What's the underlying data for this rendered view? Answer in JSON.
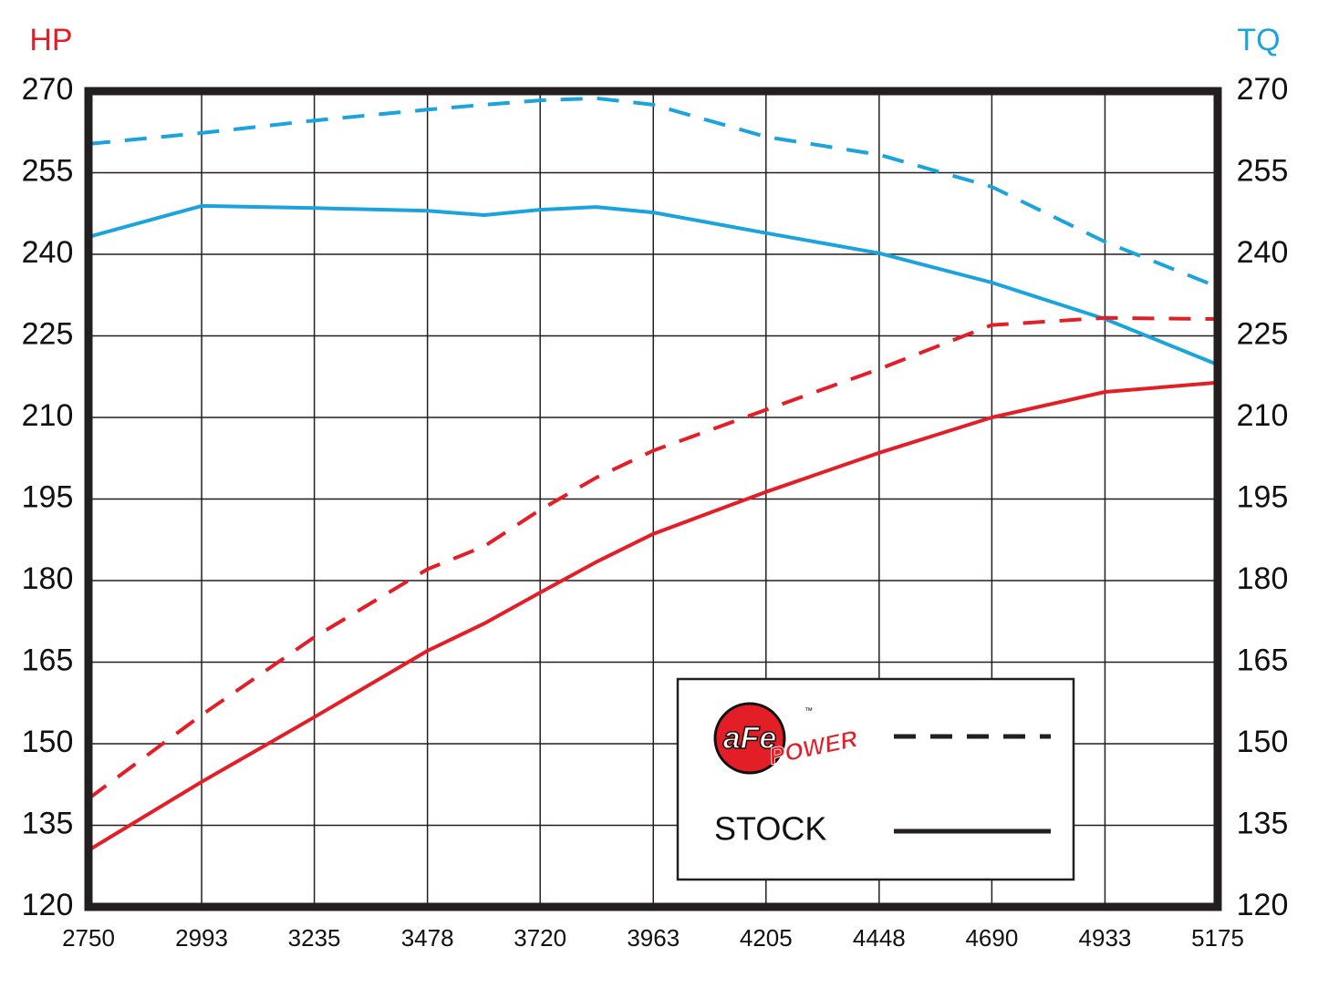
{
  "chart_data": {
    "type": "line",
    "y_label": "HP",
    "y2_label": "TQ",
    "x": [
      2750,
      2993,
      3235,
      3478,
      3600,
      3720,
      3840,
      3963,
      4205,
      4448,
      4690,
      4933,
      5175
    ],
    "xlim": [
      2750,
      5175
    ],
    "xticks": [
      2750,
      2993,
      3235,
      3478,
      3720,
      3963,
      4205,
      4448,
      4690,
      4933,
      5175
    ],
    "ylim": [
      120,
      270
    ],
    "yticks": [
      270,
      255,
      240,
      225,
      210,
      195,
      180,
      165,
      150,
      135,
      120
    ],
    "y2lim": [
      120,
      270
    ],
    "y2ticks": [
      270,
      255,
      240,
      225,
      210,
      195,
      180,
      165,
      150,
      135,
      120
    ],
    "y_label_color": "#e31e26",
    "y2_label_color": "#1aa3dd",
    "grid": true,
    "series": [
      {
        "color": "#1aa3dd",
        "style": "dashed",
        "axis": "y2",
        "values": [
          260.3,
          262.3,
          264.6,
          266.6,
          267.5,
          268.3,
          268.7,
          267.5,
          261.6,
          258.3,
          252.4,
          242.3,
          234.0
        ]
      },
      {
        "color": "#1aa3dd",
        "style": "solid",
        "axis": "y2",
        "values": [
          243.2,
          248.9,
          248.5,
          248.0,
          247.2,
          248.2,
          248.7,
          247.7,
          243.9,
          240.2,
          234.8,
          228.1,
          219.7
        ]
      },
      {
        "color": "#e31e26",
        "style": "dashed",
        "values": [
          139.9,
          155.3,
          169.6,
          182.1,
          186.3,
          193.0,
          198.9,
          203.9,
          211.4,
          218.9,
          227.0,
          228.3,
          228.1
        ]
      },
      {
        "color": "#e31e26",
        "style": "solid",
        "values": [
          130.4,
          143.0,
          154.9,
          167.1,
          172.1,
          177.8,
          183.4,
          188.6,
          196.3,
          203.5,
          210.0,
          214.7,
          216.4
        ]
      }
    ],
    "legend": {
      "logo": "aFe",
      "logo_sub": "POWER",
      "logo_tm": "™",
      "stock": "STOCK"
    }
  }
}
